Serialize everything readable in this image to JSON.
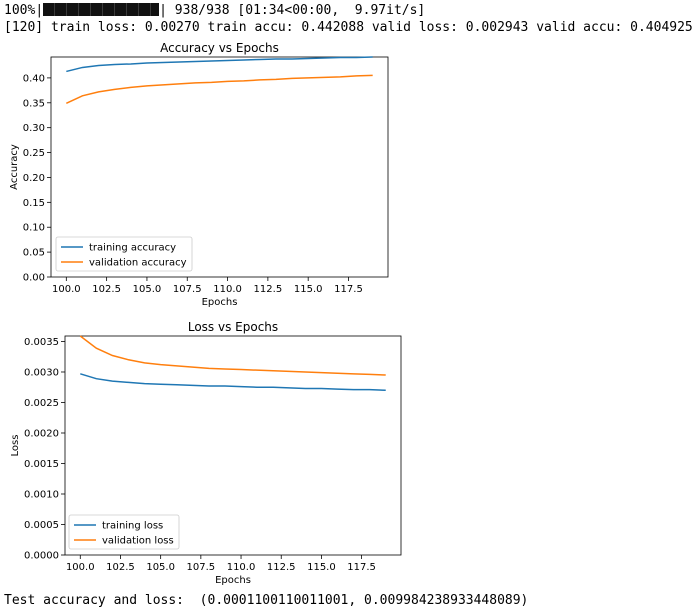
{
  "progress": {
    "percent_label": "100%",
    "fraction": 1.0,
    "stats": "938/938 [01:34<00:00,  9.97it/s]"
  },
  "epoch_log": "[120] train loss: 0.00270 train accu: 0.442088 valid loss: 0.002943 valid accu: 0.404925",
  "test_result": "Test accuracy and loss:  (0.0001100110011001, 0.009984238933448089)",
  "colors": {
    "series1": "#1f77b4",
    "series2": "#ff7f0e"
  },
  "chart_data": [
    {
      "type": "line",
      "title": "Accuracy vs Epochs",
      "xlabel": "Epochs",
      "ylabel": "Accuracy",
      "xlim": [
        99.05,
        119.95
      ],
      "ylim": [
        0,
        0.442
      ],
      "xticks": [
        100,
        102.5,
        105,
        107.5,
        110,
        112.5,
        115,
        117.5
      ],
      "xtick_labels": [
        "100.0",
        "102.5",
        "105.0",
        "107.5",
        "110.0",
        "112.5",
        "115.0",
        "117.5"
      ],
      "yticks": [
        0,
        0.05,
        0.1,
        0.15,
        0.2,
        0.25,
        0.3,
        0.35,
        0.4
      ],
      "ytick_labels": [
        "0.00",
        "0.05",
        "0.10",
        "0.15",
        "0.20",
        "0.25",
        "0.30",
        "0.35",
        "0.40"
      ],
      "legend_position": "lower-left",
      "x": [
        100,
        101,
        102,
        103,
        104,
        105,
        106,
        107,
        108,
        109,
        110,
        111,
        112,
        113,
        114,
        115,
        116,
        117,
        118,
        119
      ],
      "series": [
        {
          "name": "training accuracy",
          "values": [
            0.413,
            0.421,
            0.425,
            0.427,
            0.428,
            0.43,
            0.431,
            0.432,
            0.433,
            0.434,
            0.435,
            0.436,
            0.437,
            0.438,
            0.438,
            0.439,
            0.44,
            0.441,
            0.441,
            0.442
          ]
        },
        {
          "name": "validation accuracy",
          "values": [
            0.349,
            0.364,
            0.372,
            0.377,
            0.381,
            0.384,
            0.386,
            0.388,
            0.39,
            0.391,
            0.393,
            0.394,
            0.396,
            0.397,
            0.399,
            0.4,
            0.401,
            0.402,
            0.404,
            0.405
          ]
        }
      ]
    },
    {
      "type": "line",
      "title": "Loss vs Epochs",
      "xlabel": "Epochs",
      "ylabel": "Loss",
      "xlim": [
        99.05,
        119.95
      ],
      "ylim": [
        0,
        0.00359
      ],
      "xticks": [
        100,
        102.5,
        105,
        107.5,
        110,
        112.5,
        115,
        117.5
      ],
      "xtick_labels": [
        "100.0",
        "102.5",
        "105.0",
        "107.5",
        "110.0",
        "112.5",
        "115.0",
        "117.5"
      ],
      "yticks": [
        0,
        0.0005,
        0.001,
        0.0015,
        0.002,
        0.0025,
        0.003,
        0.0035
      ],
      "ytick_labels": [
        "0.0000",
        "0.0005",
        "0.0010",
        "0.0015",
        "0.0020",
        "0.0025",
        "0.0030",
        "0.0035"
      ],
      "legend_position": "lower-left",
      "x": [
        100,
        101,
        102,
        103,
        104,
        105,
        106,
        107,
        108,
        109,
        110,
        111,
        112,
        113,
        114,
        115,
        116,
        117,
        118,
        119
      ],
      "series": [
        {
          "name": "training loss",
          "values": [
            0.00297,
            0.00289,
            0.00285,
            0.00283,
            0.00281,
            0.0028,
            0.00279,
            0.00278,
            0.00277,
            0.00277,
            0.00276,
            0.00275,
            0.00275,
            0.00274,
            0.00273,
            0.00273,
            0.00272,
            0.00271,
            0.00271,
            0.0027
          ]
        },
        {
          "name": "validation loss",
          "values": [
            0.00359,
            0.00339,
            0.00327,
            0.0032,
            0.00315,
            0.00312,
            0.0031,
            0.00308,
            0.00306,
            0.00305,
            0.00304,
            0.00303,
            0.00302,
            0.00301,
            0.003,
            0.00299,
            0.00298,
            0.00297,
            0.00296,
            0.00295
          ]
        }
      ]
    }
  ]
}
